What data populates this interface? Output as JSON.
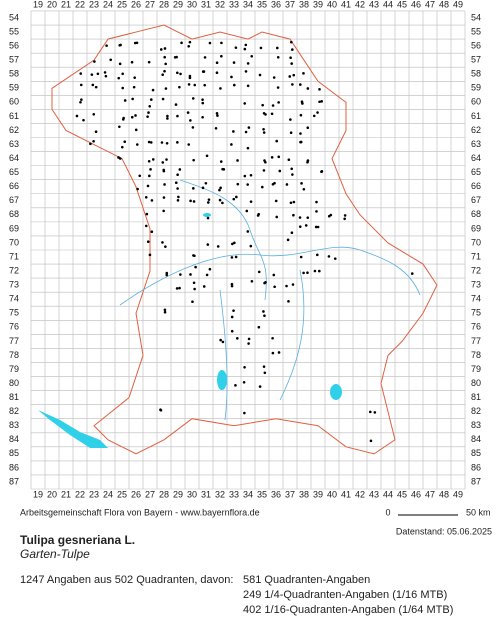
{
  "map": {
    "x_labels": [
      19,
      20,
      21,
      22,
      23,
      24,
      25,
      26,
      27,
      28,
      29,
      30,
      31,
      32,
      33,
      34,
      35,
      36,
      37,
      38,
      39,
      40,
      41,
      42,
      43,
      44,
      45,
      46,
      47,
      48,
      49
    ],
    "y_labels": [
      54,
      55,
      56,
      57,
      58,
      59,
      60,
      61,
      62,
      63,
      64,
      65,
      66,
      67,
      68,
      69,
      70,
      71,
      72,
      73,
      74,
      75,
      76,
      77,
      78,
      79,
      80,
      81,
      82,
      83,
      84,
      85,
      86,
      87
    ]
  },
  "footer": {
    "credit": "Arbeitsgemeinschaft Flora von Bayern - www.bayernflora.de",
    "scale_start": "0",
    "scale_end": "50 km",
    "date": "Datenstand: 05.06.2025"
  },
  "species": {
    "name": "Tulipa gesneriana L.",
    "common_name": "Garten-Tulpe"
  },
  "summary": {
    "total": "1247 Angaben aus 502 Quadranten, davon:",
    "lines": [
      "581 Quadranten-Angaben",
      "249 1/4-Quadranten-Angaben (1/16 MTB)",
      "402 1/16-Quadranten-Angaben (1/64 MTB)"
    ]
  }
}
